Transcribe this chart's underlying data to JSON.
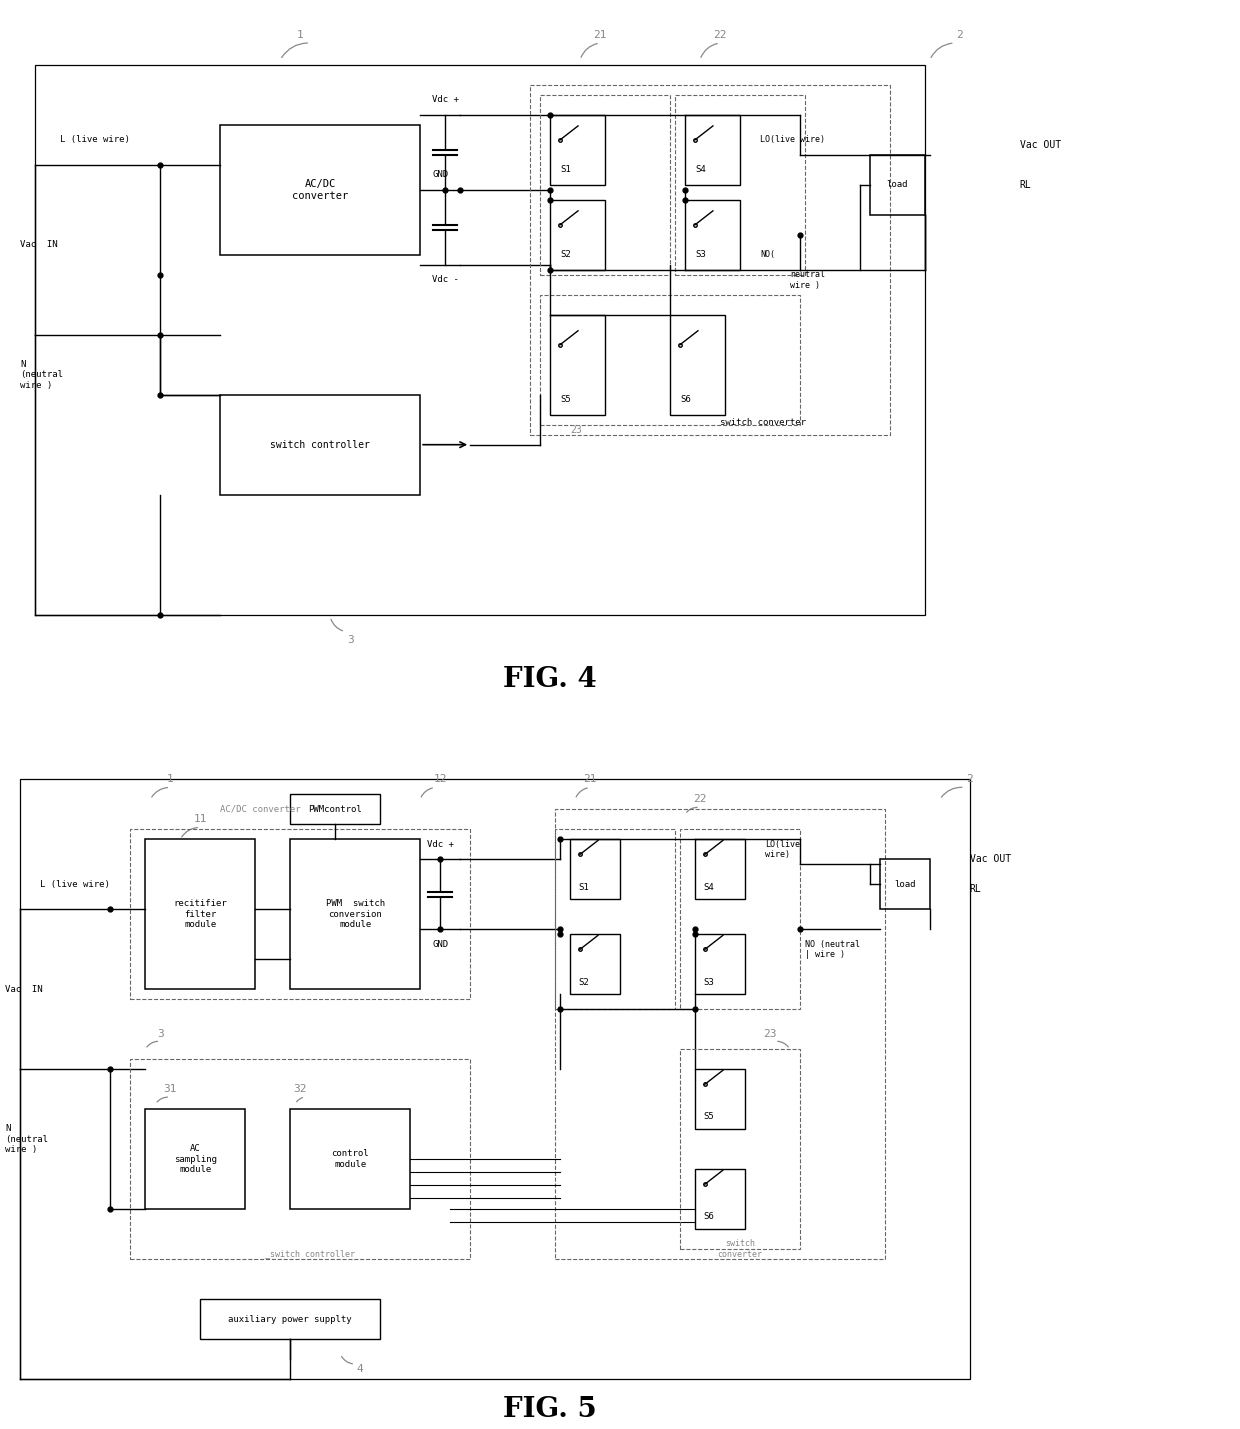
{
  "bg_color": "#ffffff",
  "lc": "#000000",
  "dc": "#666666",
  "gc": "#888888",
  "fig_title1": "FIG. 4",
  "fig_title2": "FIG. 5",
  "f4": {
    "l_live": "L (live wire)",
    "vac_in": "Vac  IN",
    "n_neutral": "N\n(neutral\nwire )",
    "ac_dc": "AC/DC\nconverter",
    "vdc_plus": "Vdc +",
    "gnd": "GND",
    "vdc_minus": "Vdc -",
    "sw_ctrl": "switch controller",
    "s1": "S1",
    "s2": "S2",
    "s3": "S3",
    "s4": "S4",
    "s5": "S5",
    "s6": "S6",
    "lo": "LO(live wire)",
    "no": "neutral\nwire )",
    "no2": "NO(",
    "vac_out": "Vac OUT",
    "load": "load",
    "rl": "RL",
    "sw_conv": "switch converter",
    "n1": "1",
    "n2": "2",
    "n3": "3",
    "n21": "21",
    "n22": "22",
    "n23": "23"
  },
  "f5": {
    "l_live": "L (live wire)",
    "vac_in": "Vac  IN",
    "n_neutral": "N\n(neutral\nwire )",
    "ac_dc": "AC/DC converter",
    "pwm_ctrl": "PWMcontrol",
    "pwm_mod": "PWM  switch\nconversion\nmodule",
    "rect_mod": "recitifier\nfilter\nmodule",
    "vdc_plus": "Vdc +",
    "gnd": "GND",
    "ac_samp": "AC\nsampling\nmodule",
    "ctrl_mod": "control\nmodule",
    "sw_ctrl": "_switch controller",
    "aux_pwr": "auxiliary power supplty",
    "s1": "S1",
    "s2": "S2",
    "s3": "S3",
    "s4": "S4",
    "s5": "S5",
    "s6": "S6",
    "lo": "LO(live\nwire)",
    "no": "NO (neutral\n| wire )",
    "vac_out": "Vac OUT",
    "load": "load",
    "rl": "RL",
    "sw_conv": "switch\nconverter",
    "n1": "1",
    "n2": "2",
    "n3": "3",
    "n4": "4",
    "n11": "11",
    "n12": "12",
    "n21": "21",
    "n22": "22",
    "n23": "23",
    "n31": "31",
    "n32": "32"
  }
}
